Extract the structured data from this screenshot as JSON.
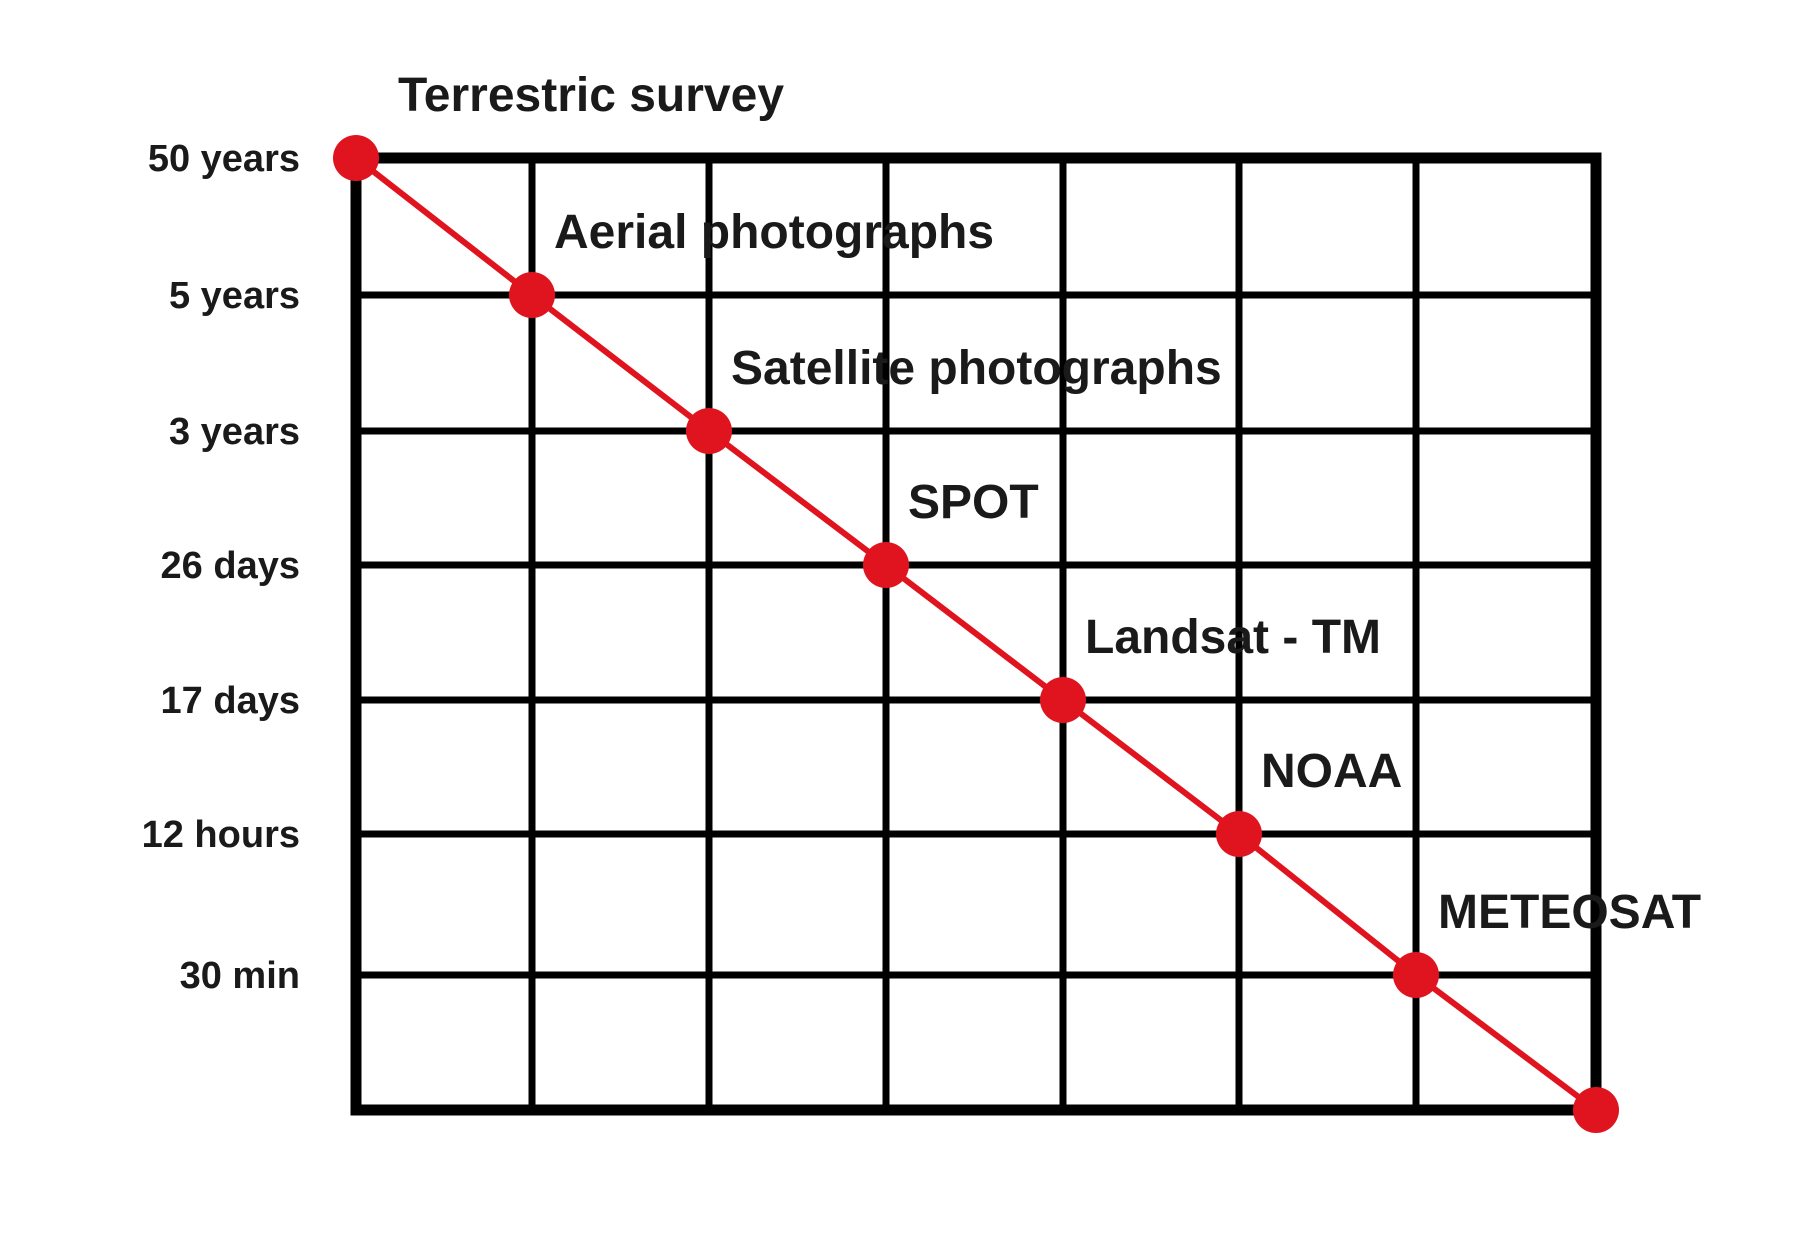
{
  "chart_data": {
    "type": "line",
    "title": "",
    "xlabel": "",
    "ylabel": "",
    "grid": true,
    "legend": "none",
    "y_tick_labels": [
      "50 years",
      "5 years",
      "3 years",
      "26 days",
      "17 days",
      "12 hours",
      "30 min"
    ],
    "series": [
      {
        "color": "#e0141e",
        "points": [
          {
            "label": "Terrestric survey",
            "y": "50 years"
          },
          {
            "label": "Aerial photographs",
            "y": "5 years"
          },
          {
            "label": "Satellite photographs",
            "y": "3 years"
          },
          {
            "label": "SPOT",
            "y": "26 days"
          },
          {
            "label": "Landsat -  TM",
            "y": "17 days"
          },
          {
            "label": "NOAA",
            "y": "12 hours"
          },
          {
            "label": "METEOSAT",
            "y": "30 min"
          },
          {
            "label": "",
            "y": ""
          }
        ]
      }
    ],
    "colors": {
      "grid": "#000000",
      "line": "#e0141e",
      "text": "#1a1a1a"
    }
  }
}
